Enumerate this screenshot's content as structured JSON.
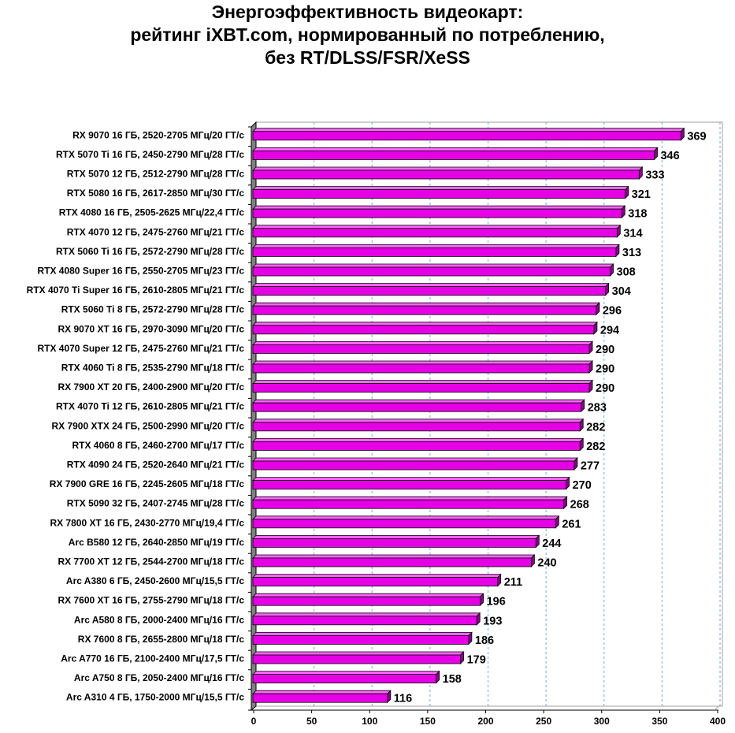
{
  "chart_data": {
    "type": "bar",
    "orientation": "horizontal",
    "title_lines": [
      "Энергоэффективность видеокарт:",
      "рейтинг iXBT.com, нормированный по потреблению,",
      "без RT/DLSS/FSR/XeSS"
    ],
    "xlabel": "",
    "ylabel": "",
    "xlim": [
      0,
      400
    ],
    "xticks": [
      0,
      50,
      100,
      150,
      200,
      250,
      300,
      350,
      400
    ],
    "grid": true,
    "legend": "none",
    "bar_color": "#E600E6",
    "categories": [
      "RX 9070 16 ГБ, 2520-2705 МГц/20 ГТ/с",
      "RTX 5070 Ti 16 ГБ, 2450-2790 МГц/28 ГТ/с",
      "RTX 5070 12 ГБ, 2512-2790 МГц/28 ГТ/с",
      "RTX 5080 16 ГБ, 2617-2850 МГц/30 ГТ/с",
      "RTX 4080 16 ГБ, 2505-2625 МГц/22,4 ГТ/с",
      "RTX 4070 12 ГБ, 2475-2760 МГц/21 ГТ/с",
      "RTX 5060 Ti 16 ГБ, 2572-2790 МГц/28 ГТ/с",
      "RTX 4080 Super 16 ГБ, 2550-2705 МГц/23 ГТ/с",
      "RTX 4070 Ti Super 16 ГБ, 2610-2805 МГц/21 ГТ/с",
      "RTX 5060 Ti 8 ГБ, 2572-2790 МГц/28 ГТ/с",
      "RX 9070 XT 16 ГБ, 2970-3090 МГц/20 ГТ/с",
      "RTX 4070 Super 12 ГБ, 2475-2760 МГц/21 ГТ/с",
      "RTX 4060 Ti 8 ГБ, 2535-2790 МГц/18 ГТ/с",
      "RX 7900 XT 20 ГБ, 2400-2900 МГц/20 ГТ/с",
      "RTX 4070 Ti 12 ГБ, 2610-2805 МГц/21 ГТ/с",
      "RX 7900 XTX 24 ГБ, 2500-2990 МГц/20 ГТ/с",
      "RTX 4060 8 ГБ, 2460-2700 МГц/17 ГТ/с",
      "RTX 4090 24 ГБ, 2520-2640 МГц/21 ГТ/с",
      "RX 7900 GRE 16 ГБ, 2245-2605 МГц/18 ГТ/с",
      "RTX 5090 32 ГБ, 2407-2745 МГц/28 ГТ/с",
      "RX 7800 XT 16 ГБ, 2430-2770 МГц/19,4 ГТ/с",
      "Arc B580 12 ГБ, 2640-2850 МГц/19 ГТ/с",
      "RX 7700 XT 12 ГБ, 2544-2700 МГц/18 ГТ/с",
      "Arc A380 6 ГБ, 2450-2600 МГц/15,5 ГТ/с",
      "RX 7600 XT 16 ГБ, 2755-2790 МГц/18 ГТ/с",
      "Arc A580 8 ГБ, 2000-2400 МГц/16 ГТ/с",
      "RX 7600 8 ГБ, 2655-2800 МГц/18 ГТ/с",
      "Arc A770 16 ГБ, 2100-2400 МГц/17,5 ГТ/с",
      "Arc A750 8 ГБ, 2050-2400 МГц/16 ГТ/с",
      "Arc A310 4 ГБ, 1750-2000 МГц/15,5 ГТ/с"
    ],
    "values": [
      369,
      346,
      333,
      321,
      318,
      314,
      313,
      308,
      304,
      296,
      294,
      290,
      290,
      290,
      283,
      282,
      282,
      277,
      270,
      268,
      261,
      244,
      240,
      211,
      196,
      193,
      186,
      179,
      158,
      116
    ]
  }
}
